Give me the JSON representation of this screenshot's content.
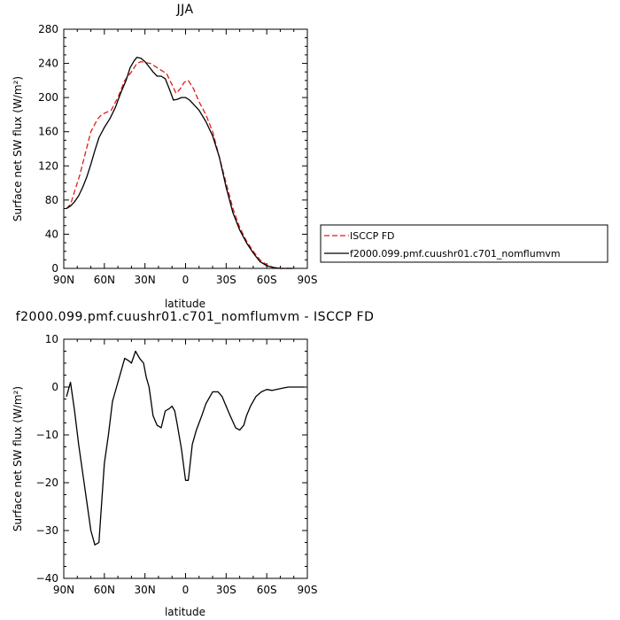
{
  "chart_data": [
    {
      "type": "line",
      "title": "JJA",
      "xlabel": "latitude",
      "ylabel": "Surface net SW flux (W/m²)",
      "xlim": [
        90,
        -90
      ],
      "ylim": [
        0,
        280
      ],
      "x_ticks": [
        "90N",
        "60N",
        "30N",
        "0",
        "30S",
        "60S",
        "90S"
      ],
      "y_ticks": [
        "0",
        "40",
        "80",
        "120",
        "160",
        "200",
        "240",
        "280"
      ],
      "y_tick_values": [
        0,
        40,
        80,
        120,
        160,
        200,
        240,
        280
      ],
      "legend": [
        "ISCCP FD",
        "f2000.099.pmf.cuushr01.c701_nomflumvm"
      ],
      "series": [
        {
          "name": "ISCCP FD",
          "color": "#e41a1c",
          "dash": "dashed",
          "x": [
            88,
            85,
            82,
            78,
            74,
            70,
            65,
            62,
            58,
            55,
            50,
            45,
            40,
            36,
            33,
            30,
            26,
            22,
            18,
            14,
            10,
            7,
            4,
            1,
            -2,
            -6,
            -10,
            -15,
            -20,
            -25,
            -30,
            -35,
            -40,
            -45,
            -50,
            -55,
            -60,
            -65,
            -70,
            -75,
            -80
          ],
          "y": [
            70,
            75,
            90,
            110,
            135,
            160,
            175,
            180,
            183,
            185,
            200,
            220,
            230,
            240,
            242,
            241,
            240,
            236,
            232,
            228,
            215,
            205,
            210,
            218,
            220,
            210,
            195,
            180,
            160,
            130,
            100,
            70,
            48,
            32,
            20,
            10,
            4,
            1,
            0,
            0,
            0
          ]
        },
        {
          "name": "f2000.099.pmf.cuushr01.c701_nomflumvm",
          "color": "#000000",
          "dash": "solid",
          "x": [
            88,
            85,
            82,
            79,
            76,
            73,
            70,
            67,
            64,
            60,
            56,
            52,
            48,
            44,
            41,
            38,
            36,
            33,
            30,
            27,
            24,
            21,
            18,
            15,
            12,
            9,
            6,
            3,
            0,
            -3,
            -6,
            -10,
            -15,
            -20,
            -25,
            -30,
            -35,
            -40,
            -45,
            -50,
            -55,
            -60,
            -65,
            -70,
            -75,
            -80
          ],
          "y": [
            70,
            73,
            78,
            85,
            95,
            107,
            122,
            138,
            153,
            165,
            175,
            188,
            205,
            220,
            235,
            243,
            247,
            246,
            242,
            236,
            230,
            225,
            225,
            222,
            210,
            197,
            198,
            200,
            200,
            197,
            192,
            185,
            172,
            155,
            130,
            95,
            65,
            45,
            30,
            18,
            8,
            3,
            1,
            0,
            0,
            0
          ]
        }
      ]
    },
    {
      "type": "line",
      "title": "f2000.099.pmf.cuushr01.c701_nomflumvm - ISCCP FD",
      "xlabel": "latitude",
      "ylabel": "Surface net SW flux (W/m²)",
      "xlim": [
        90,
        -90
      ],
      "ylim": [
        -40,
        10
      ],
      "x_ticks": [
        "90N",
        "60N",
        "30N",
        "0",
        "30S",
        "60S",
        "90S"
      ],
      "y_ticks": [
        "−40",
        "−30",
        "−20",
        "−10",
        "0",
        "10"
      ],
      "y_tick_values": [
        -40,
        -30,
        -20,
        -10,
        0,
        10
      ],
      "series": [
        {
          "color": "#000000",
          "dash": "solid",
          "x": [
            88,
            85,
            82,
            79,
            76,
            73,
            70,
            67,
            64,
            60,
            57,
            54,
            51,
            48,
            45,
            42,
            40,
            37,
            34,
            31,
            29,
            27,
            24,
            21,
            18,
            15,
            12,
            10,
            8,
            6,
            3,
            0,
            -2,
            -5,
            -8,
            -12,
            -15,
            -18,
            -20,
            -24,
            -27,
            -30,
            -33,
            -37,
            -40,
            -43,
            -45,
            -48,
            -52,
            -56,
            -60,
            -64,
            -67,
            -72,
            -76,
            -80,
            -85,
            -88
          ],
          "y": [
            -2,
            1,
            -5,
            -12,
            -18,
            -24,
            -30,
            -33,
            -32.5,
            -16,
            -10,
            -3,
            0,
            3,
            6,
            5.5,
            5,
            7.5,
            6,
            5,
            2,
            0,
            -6,
            -8,
            -8.5,
            -5,
            -4.5,
            -4,
            -5,
            -8,
            -13,
            -19.5,
            -19.5,
            -12,
            -9,
            -6,
            -3.5,
            -2,
            -1,
            -1,
            -2,
            -4,
            -6,
            -8.5,
            -9,
            -8,
            -6,
            -4,
            -2,
            -1,
            -0.5,
            -0.7,
            -0.5,
            -0.2,
            0,
            0,
            0,
            0
          ]
        }
      ]
    }
  ]
}
